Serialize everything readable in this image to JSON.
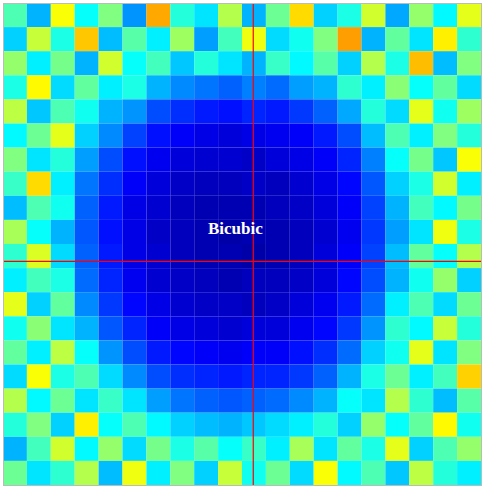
{
  "chart_data": {
    "type": "heatmap",
    "color": "jet",
    "tick_labels": false,
    "xlim": [
      0,
      20
    ],
    "ylim": [
      0,
      20
    ],
    "zlim": [
      0,
      1
    ],
    "crosshair": {
      "x": 10.45,
      "y": 10.7
    },
    "annotations": [
      {
        "text": "Bicubic",
        "x": 9.7,
        "y": 9.35
      }
    ],
    "cells": [
      [
        0.45,
        0.3,
        0.62,
        0.38,
        0.5,
        0.27,
        0.71,
        0.41,
        0.35,
        0.55,
        0.3,
        0.48,
        0.66,
        0.33,
        0.4,
        0.58,
        0.29,
        0.52,
        0.37,
        0.6
      ],
      [
        0.33,
        0.57,
        0.4,
        0.68,
        0.31,
        0.46,
        0.36,
        0.53,
        0.28,
        0.44,
        0.61,
        0.34,
        0.39,
        0.5,
        0.72,
        0.3,
        0.47,
        0.35,
        0.64,
        0.42
      ],
      [
        0.52,
        0.36,
        0.49,
        0.3,
        0.58,
        0.38,
        0.44,
        0.32,
        0.41,
        0.35,
        0.3,
        0.43,
        0.37,
        0.46,
        0.33,
        0.55,
        0.4,
        0.69,
        0.31,
        0.5
      ],
      [
        0.4,
        0.63,
        0.34,
        0.47,
        0.36,
        0.4,
        0.3,
        0.26,
        0.24,
        0.22,
        0.25,
        0.23,
        0.28,
        0.3,
        0.42,
        0.36,
        0.51,
        0.38,
        0.47,
        0.34
      ],
      [
        0.56,
        0.32,
        0.45,
        0.39,
        0.3,
        0.27,
        0.2,
        0.17,
        0.15,
        0.14,
        0.16,
        0.15,
        0.18,
        0.22,
        0.29,
        0.41,
        0.34,
        0.6,
        0.39,
        0.53
      ],
      [
        0.37,
        0.48,
        0.6,
        0.33,
        0.26,
        0.19,
        0.14,
        0.12,
        0.1,
        0.09,
        0.1,
        0.11,
        0.12,
        0.15,
        0.2,
        0.31,
        0.45,
        0.36,
        0.5,
        0.41
      ],
      [
        0.5,
        0.35,
        0.41,
        0.28,
        0.2,
        0.14,
        0.11,
        0.09,
        0.08,
        0.08,
        0.07,
        0.09,
        0.1,
        0.12,
        0.16,
        0.25,
        0.38,
        0.49,
        0.32,
        0.62
      ],
      [
        0.43,
        0.66,
        0.36,
        0.24,
        0.17,
        0.12,
        0.09,
        0.07,
        0.06,
        0.06,
        0.07,
        0.06,
        0.08,
        0.1,
        0.13,
        0.21,
        0.33,
        0.4,
        0.58,
        0.36
      ],
      [
        0.31,
        0.45,
        0.39,
        0.22,
        0.15,
        0.1,
        0.08,
        0.06,
        0.05,
        0.05,
        0.05,
        0.06,
        0.07,
        0.09,
        0.12,
        0.19,
        0.3,
        0.44,
        0.37,
        0.49
      ],
      [
        0.54,
        0.38,
        0.3,
        0.21,
        0.14,
        0.1,
        0.07,
        0.06,
        0.05,
        0.04,
        0.05,
        0.05,
        0.06,
        0.08,
        0.11,
        0.18,
        0.28,
        0.35,
        0.61,
        0.4
      ],
      [
        0.42,
        0.59,
        0.34,
        0.22,
        0.15,
        0.1,
        0.08,
        0.06,
        0.05,
        0.05,
        0.04,
        0.05,
        0.06,
        0.09,
        0.12,
        0.19,
        0.31,
        0.47,
        0.38,
        0.55
      ],
      [
        0.36,
        0.44,
        0.4,
        0.23,
        0.16,
        0.11,
        0.08,
        0.07,
        0.06,
        0.05,
        0.06,
        0.06,
        0.07,
        0.09,
        0.13,
        0.2,
        0.3,
        0.39,
        0.52,
        0.33
      ],
      [
        0.6,
        0.33,
        0.47,
        0.26,
        0.18,
        0.13,
        0.1,
        0.08,
        0.07,
        0.07,
        0.06,
        0.07,
        0.09,
        0.11,
        0.15,
        0.23,
        0.36,
        0.45,
        0.34,
        0.48
      ],
      [
        0.39,
        0.51,
        0.35,
        0.3,
        0.21,
        0.16,
        0.12,
        0.1,
        0.09,
        0.08,
        0.09,
        0.09,
        0.11,
        0.13,
        0.18,
        0.27,
        0.42,
        0.37,
        0.57,
        0.41
      ],
      [
        0.47,
        0.36,
        0.56,
        0.38,
        0.27,
        0.2,
        0.15,
        0.13,
        0.12,
        0.11,
        0.12,
        0.12,
        0.14,
        0.17,
        0.23,
        0.33,
        0.39,
        0.6,
        0.35,
        0.5
      ],
      [
        0.34,
        0.62,
        0.4,
        0.45,
        0.34,
        0.26,
        0.2,
        0.17,
        0.16,
        0.15,
        0.16,
        0.16,
        0.18,
        0.22,
        0.3,
        0.4,
        0.48,
        0.36,
        0.44,
        0.67
      ],
      [
        0.55,
        0.37,
        0.48,
        0.35,
        0.43,
        0.35,
        0.28,
        0.24,
        0.22,
        0.21,
        0.22,
        0.23,
        0.26,
        0.3,
        0.38,
        0.35,
        0.55,
        0.42,
        0.31,
        0.46
      ],
      [
        0.41,
        0.5,
        0.33,
        0.64,
        0.38,
        0.45,
        0.37,
        0.33,
        0.31,
        0.3,
        0.32,
        0.34,
        0.36,
        0.41,
        0.33,
        0.52,
        0.38,
        0.47,
        0.63,
        0.39
      ],
      [
        0.3,
        0.44,
        0.58,
        0.37,
        0.52,
        0.34,
        0.49,
        0.4,
        0.46,
        0.38,
        0.43,
        0.36,
        0.54,
        0.35,
        0.47,
        0.4,
        0.6,
        0.33,
        0.45,
        0.52
      ],
      [
        0.48,
        0.35,
        0.42,
        0.55,
        0.31,
        0.61,
        0.36,
        0.5,
        0.33,
        0.57,
        0.39,
        0.48,
        0.34,
        0.62,
        0.37,
        0.45,
        0.32,
        0.56,
        0.41,
        0.36
      ]
    ]
  }
}
